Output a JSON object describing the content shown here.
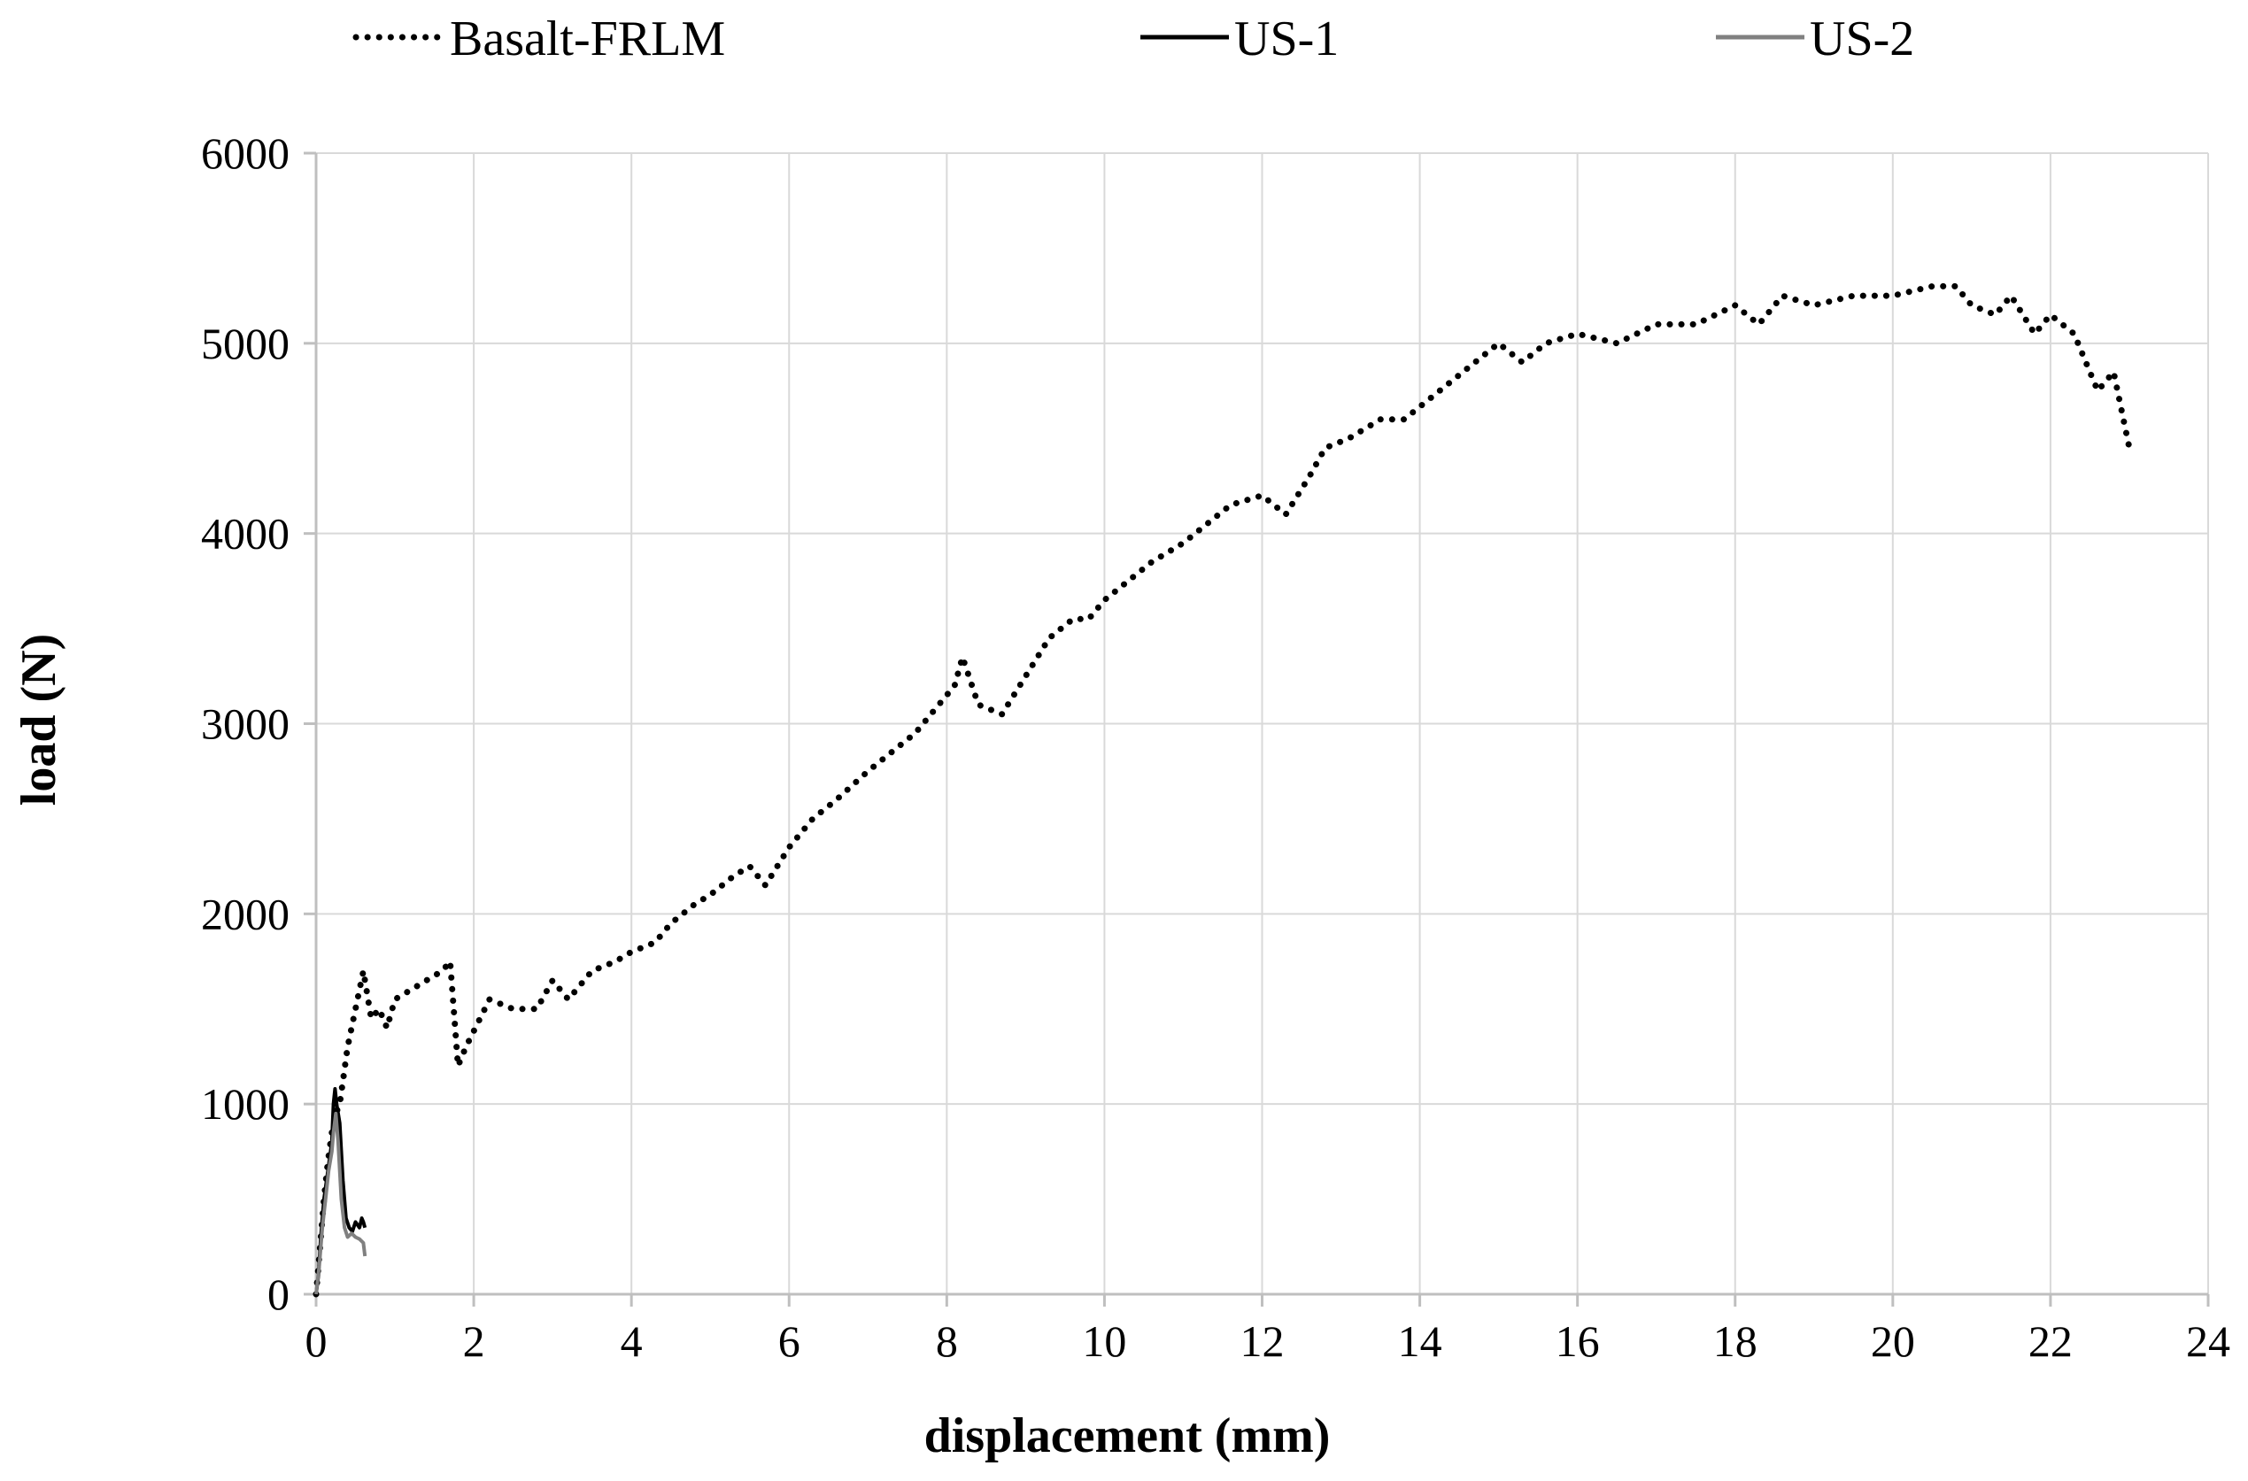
{
  "chart_data": {
    "type": "line",
    "xlabel": "displacement (mm)",
    "ylabel": "load (N)",
    "xlim": [
      0,
      24
    ],
    "ylim": [
      0,
      6000
    ],
    "x_ticks": [
      "0",
      "2",
      "4",
      "6",
      "8",
      "10",
      "12",
      "14",
      "16",
      "18",
      "20",
      "22",
      "24"
    ],
    "y_ticks": [
      "0",
      "1000",
      "2000",
      "3000",
      "4000",
      "5000",
      "6000"
    ],
    "grid": true,
    "legend_position": "top",
    "series": [
      {
        "name": "Basalt-FRLM",
        "style": "dotted",
        "color": "#000000",
        "points": [
          [
            0.0,
            0
          ],
          [
            0.05,
            250
          ],
          [
            0.1,
            500
          ],
          [
            0.15,
            700
          ],
          [
            0.2,
            850
          ],
          [
            0.25,
            950
          ],
          [
            0.3,
            1000
          ],
          [
            0.35,
            1150
          ],
          [
            0.4,
            1300
          ],
          [
            0.5,
            1500
          ],
          [
            0.6,
            1700
          ],
          [
            0.7,
            1450
          ],
          [
            0.8,
            1500
          ],
          [
            0.9,
            1400
          ],
          [
            1.0,
            1550
          ],
          [
            1.2,
            1600
          ],
          [
            1.4,
            1650
          ],
          [
            1.6,
            1700
          ],
          [
            1.7,
            1750
          ],
          [
            1.8,
            1200
          ],
          [
            1.9,
            1300
          ],
          [
            2.2,
            1550
          ],
          [
            2.5,
            1500
          ],
          [
            2.8,
            1500
          ],
          [
            3.0,
            1650
          ],
          [
            3.2,
            1550
          ],
          [
            3.5,
            1700
          ],
          [
            3.8,
            1750
          ],
          [
            4.0,
            1800
          ],
          [
            4.3,
            1850
          ],
          [
            4.5,
            1950
          ],
          [
            4.8,
            2050
          ],
          [
            5.0,
            2100
          ],
          [
            5.3,
            2200
          ],
          [
            5.5,
            2250
          ],
          [
            5.7,
            2150
          ],
          [
            6.0,
            2350
          ],
          [
            6.3,
            2500
          ],
          [
            6.6,
            2600
          ],
          [
            7.0,
            2750
          ],
          [
            7.3,
            2850
          ],
          [
            7.6,
            2950
          ],
          [
            7.9,
            3100
          ],
          [
            8.1,
            3200
          ],
          [
            8.2,
            3350
          ],
          [
            8.4,
            3100
          ],
          [
            8.7,
            3050
          ],
          [
            9.0,
            3250
          ],
          [
            9.3,
            3450
          ],
          [
            9.6,
            3550
          ],
          [
            9.8,
            3550
          ],
          [
            10.0,
            3650
          ],
          [
            10.3,
            3750
          ],
          [
            10.6,
            3850
          ],
          [
            11.0,
            3950
          ],
          [
            11.3,
            4050
          ],
          [
            11.6,
            4150
          ],
          [
            12.0,
            4200
          ],
          [
            12.3,
            4100
          ],
          [
            12.6,
            4300
          ],
          [
            12.8,
            4450
          ],
          [
            13.1,
            4500
          ],
          [
            13.5,
            4600
          ],
          [
            13.8,
            4600
          ],
          [
            14.1,
            4700
          ],
          [
            14.4,
            4800
          ],
          [
            14.7,
            4900
          ],
          [
            15.0,
            5000
          ],
          [
            15.3,
            4900
          ],
          [
            15.6,
            5000
          ],
          [
            16.0,
            5050
          ],
          [
            16.5,
            5000
          ],
          [
            17.0,
            5100
          ],
          [
            17.5,
            5100
          ],
          [
            18.0,
            5200
          ],
          [
            18.3,
            5100
          ],
          [
            18.6,
            5250
          ],
          [
            19.0,
            5200
          ],
          [
            19.5,
            5250
          ],
          [
            20.0,
            5250
          ],
          [
            20.5,
            5300
          ],
          [
            20.8,
            5300
          ],
          [
            21.0,
            5200
          ],
          [
            21.3,
            5150
          ],
          [
            21.5,
            5250
          ],
          [
            21.8,
            5050
          ],
          [
            22.0,
            5150
          ],
          [
            22.3,
            5050
          ],
          [
            22.5,
            4850
          ],
          [
            22.6,
            4750
          ],
          [
            22.7,
            4800
          ],
          [
            22.8,
            4850
          ],
          [
            22.9,
            4650
          ],
          [
            23.0,
            4450
          ]
        ]
      },
      {
        "name": "US-1",
        "style": "solid",
        "color": "#000000",
        "points": [
          [
            0.0,
            0
          ],
          [
            0.03,
            100
          ],
          [
            0.06,
            300
          ],
          [
            0.1,
            500
          ],
          [
            0.15,
            650
          ],
          [
            0.2,
            800
          ],
          [
            0.22,
            1000
          ],
          [
            0.24,
            1080
          ],
          [
            0.26,
            1000
          ],
          [
            0.3,
            900
          ],
          [
            0.34,
            600
          ],
          [
            0.38,
            400
          ],
          [
            0.42,
            350
          ],
          [
            0.46,
            330
          ],
          [
            0.5,
            380
          ],
          [
            0.55,
            350
          ],
          [
            0.58,
            400
          ],
          [
            0.6,
            380
          ],
          [
            0.62,
            350
          ]
        ]
      },
      {
        "name": "US-2",
        "style": "solid",
        "color": "#808080",
        "points": [
          [
            0.0,
            0
          ],
          [
            0.04,
            150
          ],
          [
            0.08,
            350
          ],
          [
            0.12,
            500
          ],
          [
            0.16,
            650
          ],
          [
            0.2,
            750
          ],
          [
            0.22,
            850
          ],
          [
            0.25,
            950
          ],
          [
            0.28,
            800
          ],
          [
            0.32,
            500
          ],
          [
            0.36,
            350
          ],
          [
            0.4,
            300
          ],
          [
            0.45,
            320
          ],
          [
            0.5,
            300
          ],
          [
            0.55,
            290
          ],
          [
            0.6,
            270
          ],
          [
            0.62,
            200
          ]
        ]
      }
    ]
  }
}
